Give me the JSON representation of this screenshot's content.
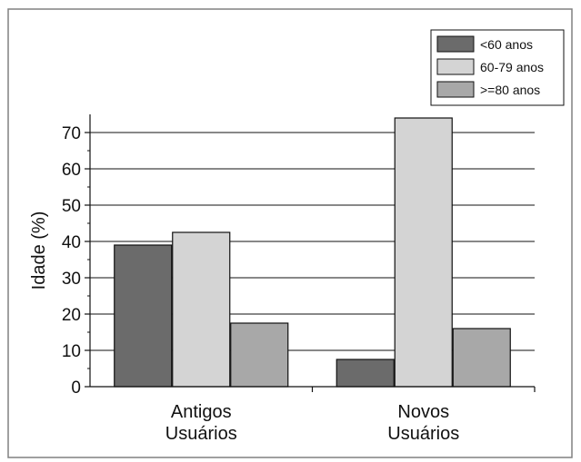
{
  "chart_data": {
    "type": "bar",
    "title": "",
    "xlabel": "",
    "ylabel": "Idade (%)",
    "ylim": [
      0,
      75
    ],
    "yticks": [
      0,
      10,
      20,
      30,
      40,
      50,
      60,
      70
    ],
    "grid": true,
    "legend_position": "top-right",
    "categories": [
      [
        "Antigos",
        "Usuários"
      ],
      [
        "Novos",
        "Usuários"
      ]
    ],
    "series": [
      {
        "name": "<60 anos",
        "values": [
          39,
          7.5
        ],
        "color": "#6b6b6b"
      },
      {
        "name": "60-79 anos",
        "values": [
          42.5,
          74
        ],
        "color": "#d4d4d4"
      },
      {
        "name": ">=80 anos",
        "values": [
          17.5,
          16
        ],
        "color": "#a8a8a8"
      }
    ]
  }
}
